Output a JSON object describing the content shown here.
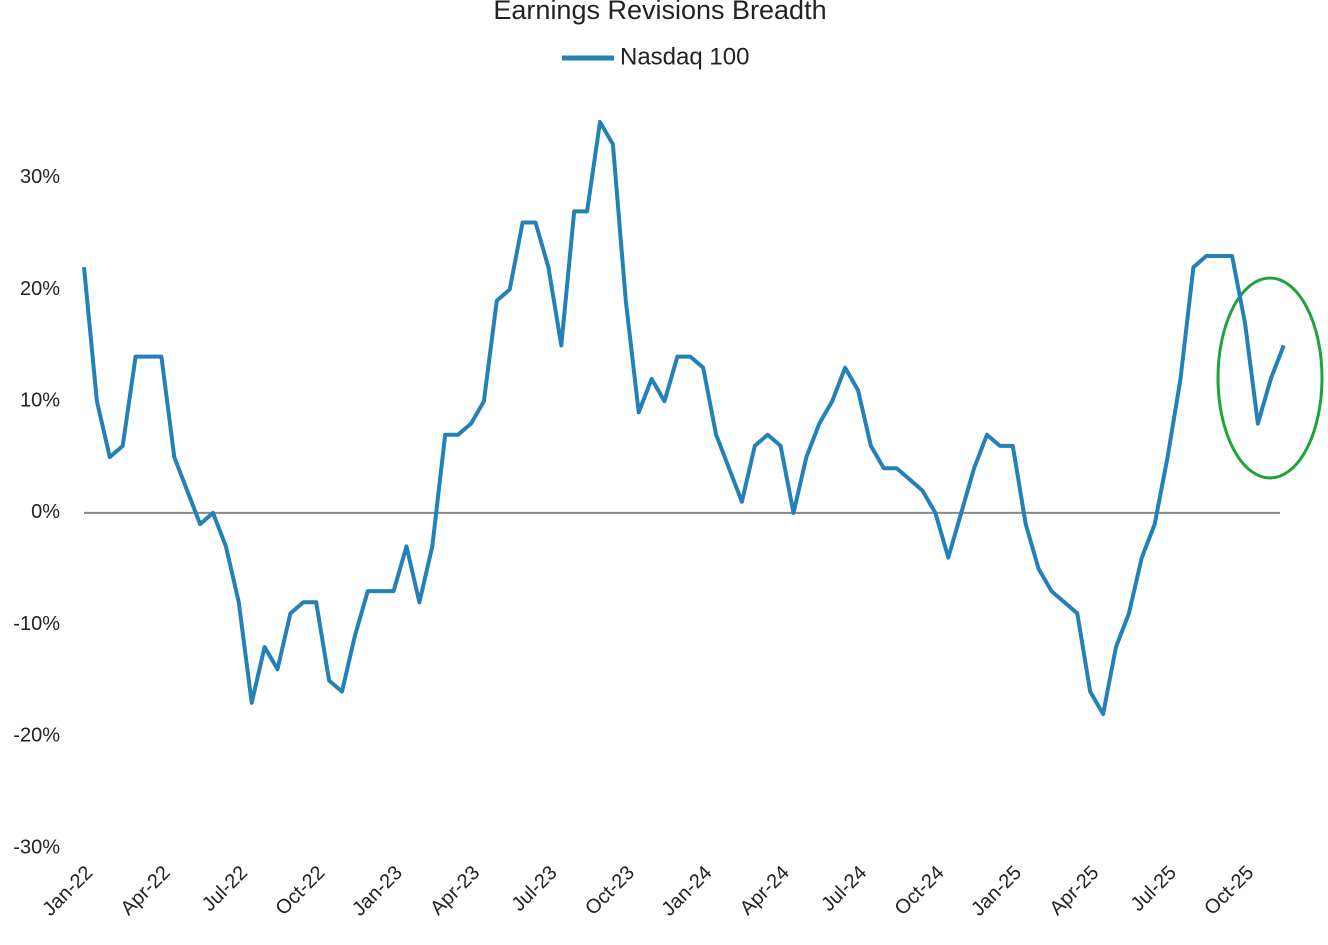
{
  "chart_data": {
    "type": "line",
    "title": "Earnings Revisions Breadth",
    "categories": [
      "Jan-22",
      null,
      null,
      null,
      null,
      null,
      "Apr-22",
      null,
      null,
      null,
      null,
      null,
      "Jul-22",
      null,
      null,
      null,
      null,
      null,
      "Oct-22",
      null,
      null,
      null,
      null,
      null,
      "Jan-23",
      null,
      null,
      null,
      null,
      null,
      "Apr-23",
      null,
      null,
      null,
      null,
      null,
      "Jul-23",
      null,
      null,
      null,
      null,
      null,
      "Oct-23",
      null,
      null,
      null,
      null,
      null,
      "Jan-24",
      null,
      null,
      null,
      null,
      null,
      "Apr-24",
      null,
      null,
      null,
      null,
      null,
      "Jul-24",
      null,
      null,
      null,
      null,
      null,
      "Oct-24",
      null,
      null,
      null,
      null,
      null,
      "Jan-25",
      null,
      null,
      null,
      null,
      null,
      "Apr-25",
      null,
      null,
      null,
      null,
      null,
      "Jul-25",
      null,
      null,
      null,
      null,
      null,
      "Oct-25",
      null,
      null,
      null
    ],
    "series": [
      {
        "name": "Nasdaq 100",
        "color": "#2381b8",
        "values": [
          22,
          10,
          5,
          6,
          14,
          14,
          14,
          5,
          2,
          -1,
          0,
          -3,
          -8,
          -17,
          -12,
          -14,
          -9,
          -8,
          -8,
          -15,
          -16,
          -11,
          -7,
          -7,
          -7,
          -3,
          -8,
          -3,
          7,
          7,
          8,
          10,
          19,
          20,
          26,
          26,
          22,
          15,
          27,
          27,
          35,
          33,
          19,
          9,
          12,
          10,
          14,
          14,
          13,
          7,
          4,
          1,
          6,
          7,
          6,
          0,
          5,
          8,
          10,
          13,
          11,
          6,
          4,
          4,
          3,
          2,
          0,
          -4,
          0,
          4,
          7,
          6,
          6,
          -1,
          -5,
          -7,
          -8,
          -9,
          -16,
          -18,
          -12,
          -9,
          -4,
          -1,
          5,
          12,
          22,
          23,
          23,
          23,
          17,
          8,
          12,
          15
        ]
      }
    ],
    "ylim": [
      -30,
      35
    ],
    "yticks": [
      {
        "value": -30,
        "label": "-30%"
      },
      {
        "value": -20,
        "label": "-20%"
      },
      {
        "value": -10,
        "label": "-10%"
      },
      {
        "value": 0,
        "label": "0%"
      },
      {
        "value": 10,
        "label": "10%"
      },
      {
        "value": 20,
        "label": "20%"
      },
      {
        "value": 30,
        "label": "30%"
      }
    ],
    "zero_line": true,
    "legend": "top"
  }
}
